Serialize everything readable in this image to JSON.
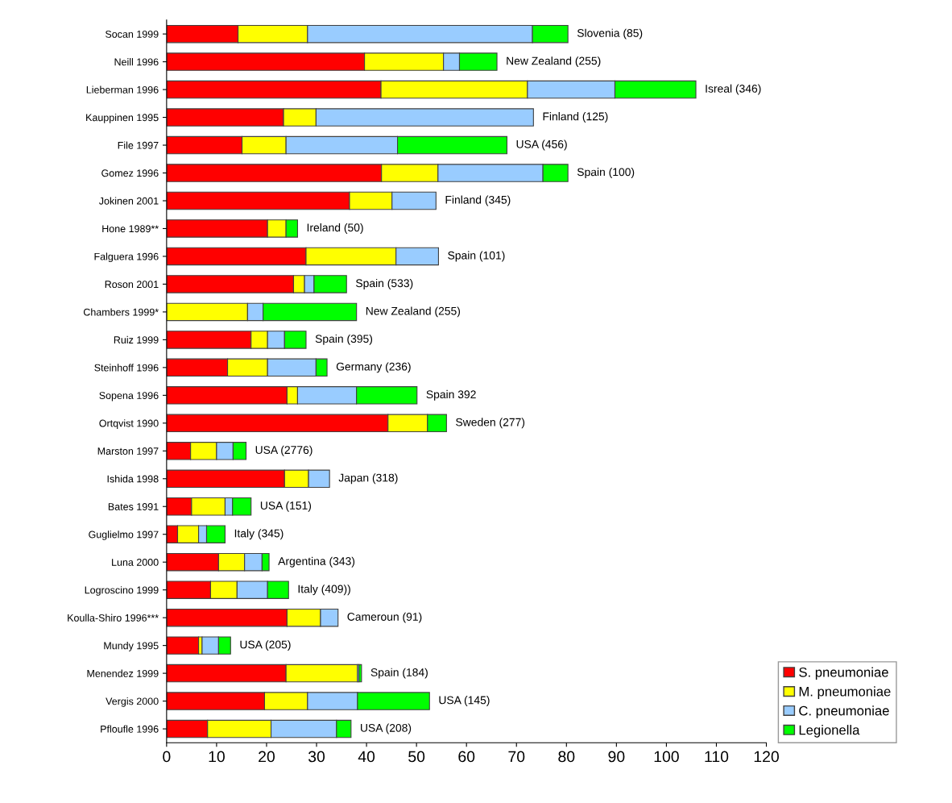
{
  "chart_data": {
    "type": "bar",
    "orientation": "horizontal",
    "stacked": true,
    "categories": [
      "Socan 1999",
      "Neill 1996",
      "Lieberman 1996",
      "Kauppinen 1995",
      "File 1997",
      "Gomez 1996",
      "Jokinen 2001",
      "Hone 1989**",
      "Falguera 1996",
      "Roson 2001",
      "Chambers 1999*",
      "Ruiz 1999",
      "Steinhoff 1996",
      "Sopena 1996",
      "Ortqvist 1990",
      "Marston 1997",
      "Ishida 1998",
      "Bates 1991",
      "Guglielmo 1997",
      "Luna 2000",
      "Logroscino 1999",
      "Koulla-Shiro 1996***",
      "Mundy 1995",
      "Menendez 1999",
      "Vergis 2000",
      "Pfloufle 1996"
    ],
    "series": [
      {
        "name": "S. pneumoniae",
        "color": "#ff0000",
        "values": [
          14.3,
          39.6,
          42.9,
          23.4,
          15.1,
          43,
          36.6,
          20.2,
          27.9,
          25.4,
          null,
          16.9,
          12.2,
          24.1,
          44.3,
          4.8,
          23.6,
          5,
          2.2,
          10.4,
          8.8,
          24.1,
          6.4,
          23.9,
          19.6,
          8.2
        ]
      },
      {
        "name": "M. pneumoniae",
        "color": "#ffff00",
        "values": [
          13.9,
          15.8,
          29.3,
          6.5,
          8.8,
          11.3,
          8.5,
          3.7,
          18,
          2.2,
          16.2,
          3.3,
          8,
          2.1,
          7.9,
          5.2,
          4.8,
          6.7,
          4.2,
          5.2,
          5.3,
          6.7,
          0.7,
          14.3,
          8.6,
          12.7
        ]
      },
      {
        "name": "C. pneumoniae",
        "color": "#99ccff",
        "values": [
          45,
          3.2,
          17.5,
          43.5,
          22.3,
          21,
          8.8,
          null,
          8.5,
          1.9,
          3.1,
          3.4,
          9.7,
          11.8,
          null,
          3.3,
          4.2,
          1.5,
          1.6,
          3.5,
          6.1,
          3.5,
          3.3,
          0.3,
          10,
          13.1
        ]
      },
      {
        "name": "Legionella",
        "color": "#00ff00",
        "values": [
          7.1,
          7.5,
          16.2,
          null,
          21.9,
          5,
          null,
          2.3,
          null,
          6.5,
          18.7,
          4.3,
          2.2,
          12.1,
          3.8,
          2.6,
          null,
          3.7,
          3.7,
          1.4,
          4.2,
          null,
          2.4,
          0.5,
          14.4,
          2.9
        ]
      }
    ],
    "value_labels": [
      "Slovenia (85)",
      "New Zealand (255)",
      "Isreal (346)",
      "Finland (125)",
      "USA (456)",
      "Spain (100)",
      "Finland (345)",
      "Ireland (50)",
      "Spain (101)",
      "Spain (533)",
      "New Zealand (255)",
      "Spain (395)",
      "Germany (236)",
      "Spain 392",
      "Sweden (277)",
      "USA (2776)",
      "Japan (318)",
      "USA (151)",
      "Italy (345)",
      "Argentina (343)",
      "Italy (409))",
      "Cameroun (91)",
      "USA (205)",
      "Spain (184)",
      "USA (145)",
      "USA (208)"
    ],
    "xlim": [
      0,
      120
    ],
    "xticks": [
      0,
      10,
      20,
      30,
      40,
      50,
      60,
      70,
      80,
      90,
      100,
      110,
      120
    ],
    "legend": "bottom right"
  }
}
